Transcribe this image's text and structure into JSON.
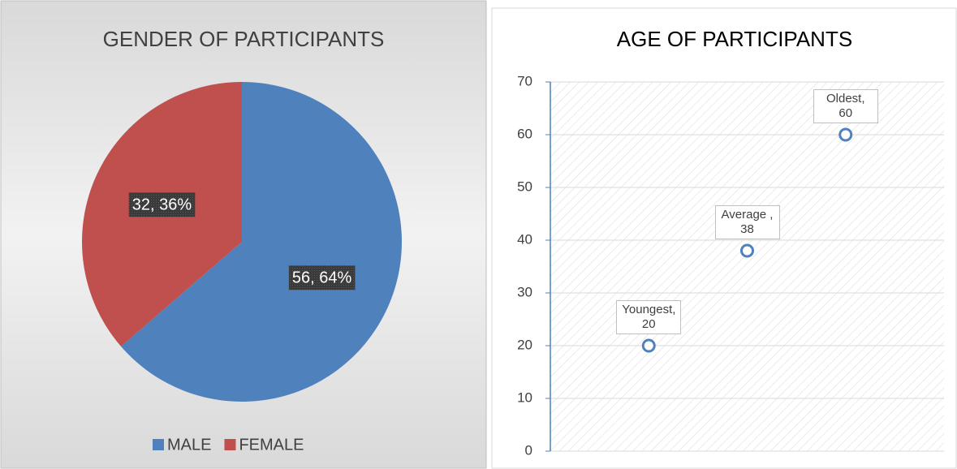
{
  "chart_data": [
    {
      "type": "pie",
      "title": "GENDER OF PARTICIPANTS",
      "categories": [
        "MALE",
        "FEMALE"
      ],
      "values": [
        56,
        32
      ],
      "value_labels": [
        "56, 64%",
        "32, 36%"
      ],
      "colors": [
        "#4f81bd",
        "#c0504d"
      ],
      "legend": "bottom"
    },
    {
      "type": "scatter",
      "title": "AGE OF PARTICIPANTS",
      "x": [
        1,
        2,
        3
      ],
      "values": [
        20,
        38,
        60
      ],
      "value_labels": [
        "Youngest, 20",
        "Average , 38",
        "Oldest, 60"
      ],
      "color": "#4f81bd",
      "xlim": [
        0,
        4
      ],
      "ylim": [
        0,
        70
      ],
      "yticks": [
        0,
        10,
        20,
        30,
        40,
        50,
        60,
        70
      ],
      "grid": true
    }
  ]
}
